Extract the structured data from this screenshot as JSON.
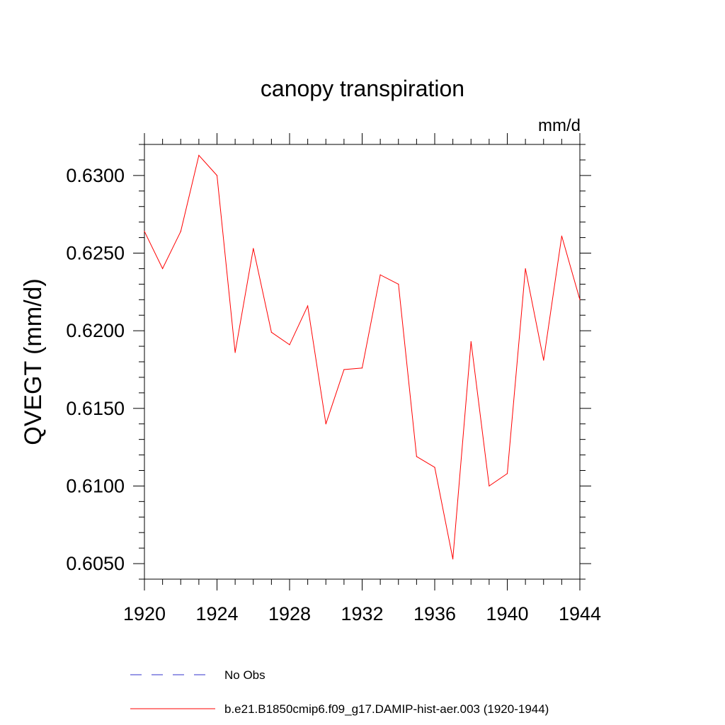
{
  "chart_data": {
    "type": "line",
    "title": "canopy transpiration",
    "units_label": "mm/d",
    "ylabel": "QVEGT  (mm/d)",
    "xlabel": "",
    "xlim": [
      1920,
      1944
    ],
    "ylim": [
      0.604,
      0.632
    ],
    "x_ticks": [
      1920,
      1924,
      1928,
      1932,
      1936,
      1940,
      1944
    ],
    "x_tick_labels": [
      "1920",
      "1924",
      "1928",
      "1932",
      "1936",
      "1940",
      "1944"
    ],
    "y_ticks": [
      0.605,
      0.61,
      0.615,
      0.62,
      0.625,
      0.63
    ],
    "y_tick_labels": [
      "0.6050",
      "0.6100",
      "0.6150",
      "0.6200",
      "0.6250",
      "0.6300"
    ],
    "grid": false,
    "legend_placement": "bottom",
    "series": [
      {
        "name": "b.e21.B1850cmip6.f09_g17.DAMIP-hist-aer.003 (1920-1944)",
        "color": "#ff0000",
        "dash": "solid",
        "x": [
          1920,
          1921,
          1922,
          1923,
          1924,
          1925,
          1926,
          1927,
          1928,
          1929,
          1930,
          1931,
          1932,
          1933,
          1934,
          1935,
          1936,
          1937,
          1938,
          1939,
          1940,
          1941,
          1942,
          1943,
          1944
        ],
        "values": [
          0.6264,
          0.624,
          0.6264,
          0.6313,
          0.63,
          0.6186,
          0.6253,
          0.6199,
          0.6191,
          0.6216,
          0.614,
          0.6175,
          0.6176,
          0.6236,
          0.623,
          0.6119,
          0.6112,
          0.6053,
          0.6193,
          0.61,
          0.6108,
          0.624,
          0.6181,
          0.6261,
          0.622
        ]
      }
    ],
    "legend": [
      {
        "label": "No Obs",
        "color": "#3333cc",
        "dash": "dashed"
      },
      {
        "label": "b.e21.B1850cmip6.f09_g17.DAMIP-hist-aer.003 (1920-1944)",
        "color": "#ff0000",
        "dash": "solid"
      }
    ]
  }
}
